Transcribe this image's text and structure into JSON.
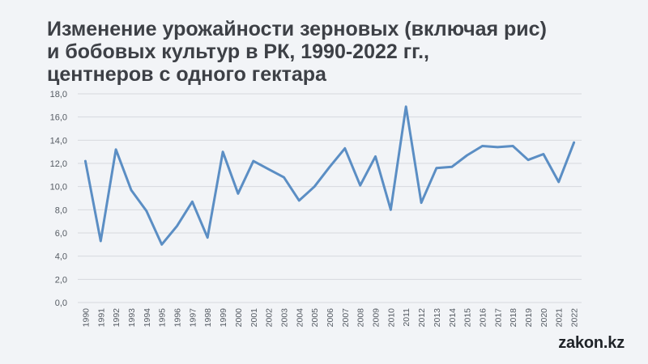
{
  "header": {
    "title_lines": [
      "Изменение урожайности зерновых (включая рис)",
      "и бобовых культур в РК, 1990-2022 гг.,",
      "центнеров с одного гектара"
    ]
  },
  "brand": {
    "label": "zakon.kz"
  },
  "colors": {
    "line": "#5b8ec4",
    "grid": "#d6d9de",
    "text": "#3d4046"
  },
  "chart_data": {
    "type": "line",
    "title": "Изменение урожайности зерновых (включая рис) и бобовых культур в РК, 1990-2022 гг., центнеров с одного гектара",
    "xlabel": "",
    "ylabel": "",
    "ylim": [
      0,
      18
    ],
    "yticks": [
      "0,0",
      "2,0",
      "4,0",
      "6,0",
      "8,0",
      "10,0",
      "12,0",
      "14,0",
      "16,0",
      "18,0"
    ],
    "grid": true,
    "legend": "none",
    "x": [
      "1990",
      "1991",
      "1992",
      "1993",
      "1994",
      "1995",
      "1996",
      "1997",
      "1998",
      "1999",
      "2000",
      "2001",
      "2002",
      "2003",
      "2004",
      "2005",
      "2006",
      "2007",
      "2008",
      "2009",
      "2010",
      "2011",
      "2012",
      "2013",
      "2014",
      "2015",
      "2016",
      "2017",
      "2018",
      "2019",
      "2020",
      "2021",
      "2022"
    ],
    "series": [
      {
        "values": [
          12.2,
          5.3,
          13.2,
          9.7,
          7.9,
          5.0,
          6.6,
          8.7,
          5.6,
          13.0,
          9.4,
          12.2,
          11.5,
          10.8,
          8.8,
          10.0,
          11.7,
          13.3,
          10.1,
          12.6,
          8.0,
          16.9,
          8.6,
          11.6,
          11.7,
          12.7,
          13.5,
          13.4,
          13.5,
          12.3,
          12.8,
          10.4,
          13.8
        ]
      }
    ]
  }
}
